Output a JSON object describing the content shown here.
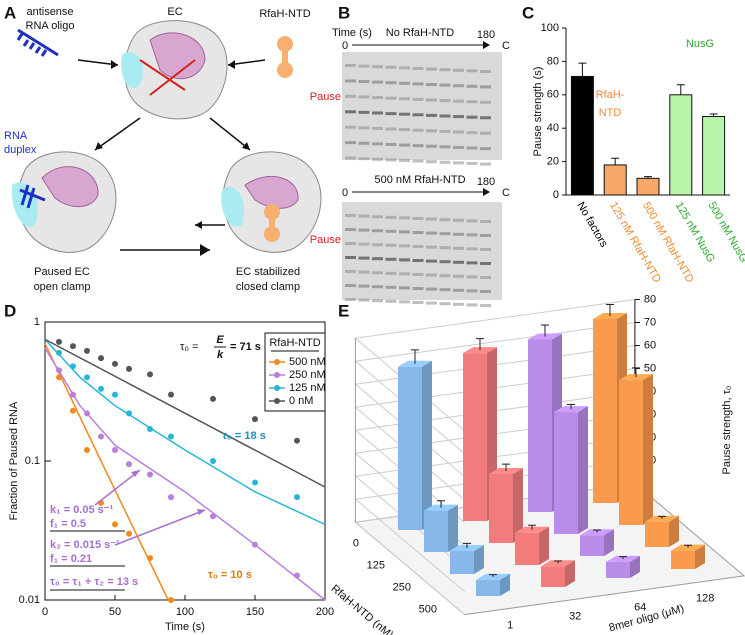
{
  "panel_a": {
    "label": "A",
    "ec": "EC",
    "oligo": [
      "antisense",
      "RNA oligo"
    ],
    "rfah": "RfaH-NTD",
    "duplex": [
      "RNA",
      "duplex"
    ],
    "paused": [
      "Paused EC",
      "open clamp"
    ],
    "stabilized": [
      "EC stabilized",
      "closed clamp"
    ]
  },
  "panel_b": {
    "label": "B",
    "time": "Time (s)",
    "gels": [
      {
        "start": 0,
        "title": "No RfaH-NTD",
        "end": 180,
        "control": "C",
        "pause": "Pause"
      },
      {
        "start": 0,
        "title": "500 nM RfaH-NTD",
        "end": 180,
        "control": "C",
        "pause": "Pause"
      }
    ]
  },
  "chart_data": [
    {
      "panel": "C",
      "type": "bar",
      "ylabel": "Pause strength (s)",
      "categories": [
        "No factors",
        "125 nM RfaH-NTD",
        "500 nM RfaH-NTD",
        "125 nM NusG",
        "500 nM NusG"
      ],
      "values": [
        71,
        18,
        10,
        60,
        47
      ],
      "errors": [
        8,
        4,
        1,
        6,
        1.5
      ],
      "colors": [
        "#000000",
        "#f8a868",
        "#f8a868",
        "#b8f5a8",
        "#b8f5a8"
      ],
      "label_colors": [
        "#000000",
        "#f08a30",
        "#f08a30",
        "#2ea82e",
        "#2ea82e"
      ],
      "ylim": [
        0,
        100
      ],
      "yticks": [
        0,
        20,
        40,
        60,
        80,
        100
      ],
      "annotations": [
        {
          "text": [
            "RfaH-",
            "NTD"
          ],
          "color": "#f08a30"
        },
        {
          "text": [
            "NusG"
          ],
          "color": "#2ea82e"
        }
      ]
    },
    {
      "panel": "D",
      "type": "line",
      "yscale": "log",
      "xlabel": "Time (s)",
      "ylabel": "Fraction of Paused RNA",
      "x": [
        10,
        20,
        30,
        40,
        50,
        60,
        75,
        90,
        120,
        150,
        180
      ],
      "xlim": [
        0,
        200
      ],
      "xticks": [
        0,
        50,
        100,
        150,
        200
      ],
      "ylim": [
        0.01,
        1
      ],
      "yticks": [
        0.01,
        0.1,
        1
      ],
      "legend_title": "RfaH-NTD",
      "legend": "upper right",
      "series": [
        {
          "name": "500 nM",
          "color": "#f08a1e",
          "values": [
            0.4,
            0.23,
            0.12,
            0.05,
            0.035,
            0.03,
            0.02,
            0.01,
            null,
            null,
            null
          ],
          "fit_x": [
            0,
            40,
            88
          ],
          "fit_values": [
            0.7,
            0.1,
            0.01
          ]
        },
        {
          "name": "250 nM",
          "color": "#b97fdc",
          "values": [
            0.45,
            0.3,
            0.22,
            0.15,
            0.12,
            0.095,
            0.08,
            0.055,
            0.04,
            0.025,
            0.015
          ],
          "fit_x": [
            0,
            25,
            50,
            100,
            150,
            200
          ],
          "fit_values": [
            0.65,
            0.25,
            0.13,
            0.06,
            0.025,
            0.01
          ]
        },
        {
          "name": "125 nM",
          "color": "#2ab5d8",
          "values": [
            0.6,
            0.48,
            0.4,
            0.33,
            0.3,
            0.22,
            0.17,
            0.15,
            0.1,
            0.07,
            0.055
          ],
          "fit_x": [
            0,
            25,
            50,
            100,
            150,
            200
          ],
          "fit_values": [
            0.75,
            0.4,
            0.25,
            0.12,
            0.06,
            0.035
          ]
        },
        {
          "name": "0 nM",
          "color": "#555555",
          "values": [
            0.72,
            0.67,
            0.62,
            0.55,
            0.5,
            0.46,
            0.42,
            0.3,
            0.28,
            0.2,
            0.14
          ],
          "fit_x": [
            0,
            200
          ],
          "fit_values": [
            0.75,
            0.065
          ]
        }
      ],
      "tau_fraction": {
        "lhs": "τ₀ =",
        "num": "E",
        "den": "k",
        "rhs": "= 71 s",
        "color": "#111111"
      },
      "annotations": [
        {
          "text": "τ₀ = 18 s",
          "color": "#1f8fb8"
        },
        {
          "text": "τ₀ = 10 s",
          "color": "#e07c10"
        }
      ],
      "fit_notes": {
        "color": "#a66fd0",
        "lines": [
          "k₁ = 0.05 s⁻¹",
          "f₁ = 0.5",
          "k₂ = 0.015 s⁻¹",
          "f₁ = 0.21",
          "τ₀ = τ₁ + τ₂ = 13 s"
        ]
      }
    },
    {
      "panel": "E",
      "type": "bar3d",
      "xlabel": "RfaH-NTD (nM)",
      "categories": [
        0,
        125,
        250,
        500
      ],
      "depth_label": "8mer oligo (μM)",
      "depth_categories": [
        1,
        32,
        64,
        128
      ],
      "zlabel": "Pause strength, τ₀",
      "zlim": [
        0,
        80
      ],
      "zticks": [
        0,
        10,
        20,
        30,
        40,
        50,
        60,
        70,
        80
      ],
      "series": [
        {
          "color": "#86b8ea",
          "values": [
            71,
            18,
            10,
            7
          ],
          "errors": [
            6,
            3,
            2,
            1
          ]
        },
        {
          "color": "#f27c7c",
          "values": [
            73,
            30,
            14,
            9
          ],
          "errors": [
            5,
            3,
            2,
            1
          ]
        },
        {
          "color": "#b88ce8",
          "values": [
            75,
            53,
            9,
            7
          ],
          "errors": [
            5,
            2,
            1,
            1
          ]
        },
        {
          "color": "#fa9a4c",
          "values": [
            80,
            63,
            11,
            8
          ],
          "errors": [
            5,
            4,
            1,
            1
          ]
        }
      ]
    }
  ]
}
